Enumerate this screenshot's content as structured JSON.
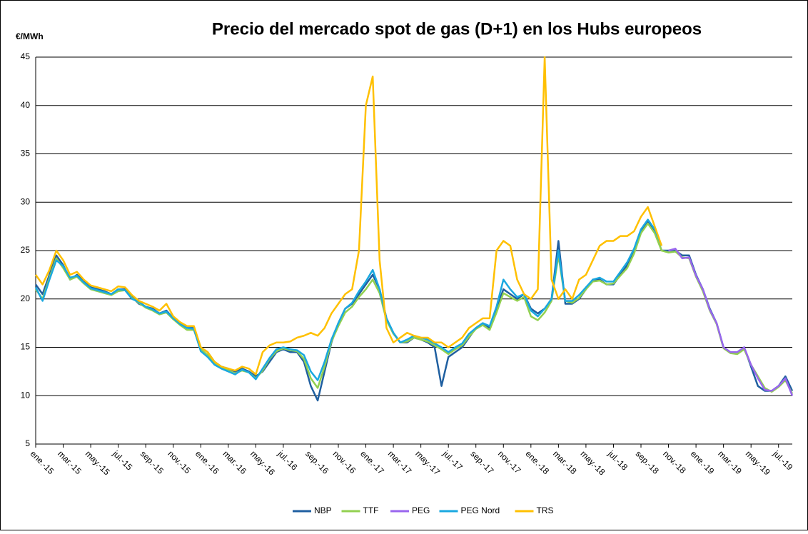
{
  "chart_data": {
    "type": "line",
    "title": "Precio del mercado spot de gas (D+1) en los Hubs europeos",
    "y_label": "€/MWh",
    "categories": [
      "ene.-15",
      null,
      null,
      null,
      "mar.-15",
      null,
      null,
      null,
      "may.-15",
      null,
      null,
      null,
      "jul.-15",
      null,
      null,
      null,
      "sep.-15",
      null,
      null,
      null,
      "nov.-15",
      null,
      null,
      null,
      "ene.-16",
      null,
      null,
      null,
      "mar.-16",
      null,
      null,
      null,
      "may.-16",
      null,
      null,
      null,
      "jul.-16",
      null,
      null,
      null,
      "sep.-16",
      null,
      null,
      null,
      "nov.-16",
      null,
      null,
      null,
      "ene.-17",
      null,
      null,
      null,
      "mar.-17",
      null,
      null,
      null,
      "may.-17",
      null,
      null,
      null,
      "jul.-17",
      null,
      null,
      null,
      "sep.-17",
      null,
      null,
      null,
      "nov.-17",
      null,
      null,
      null,
      "ene.-18",
      null,
      null,
      null,
      "mar.-18",
      null,
      null,
      null,
      "may.-18",
      null,
      null,
      null,
      "jul.-18",
      null,
      null,
      null,
      "sep.-18",
      null,
      null,
      null,
      "nov.-18",
      null,
      null,
      null,
      "ene.-19",
      null,
      null,
      null,
      "mar.-19",
      null,
      null,
      null,
      "may.-19",
      null,
      null,
      null,
      "jul.-19",
      null,
      null
    ],
    "series": [
      {
        "name": "NBP",
        "color": "#1f5fa0",
        "values": [
          21.5,
          20.5,
          22.5,
          24.5,
          23.5,
          22,
          22.5,
          21.8,
          21.2,
          21,
          20.8,
          20.5,
          21,
          21,
          20.2,
          19.5,
          19.2,
          19,
          18.5,
          18.8,
          18,
          17.5,
          17,
          17,
          15,
          14.5,
          13.5,
          13,
          12.8,
          12.5,
          12.8,
          12.5,
          12,
          12.5,
          13.5,
          14.5,
          14.8,
          14.5,
          14.5,
          13.5,
          11,
          9.5,
          12.5,
          15.5,
          17.5,
          19,
          19.5,
          20.5,
          21.5,
          22.5,
          21,
          18,
          16.5,
          15.5,
          15.5,
          16,
          15.8,
          15.5,
          15,
          11,
          14,
          14.5,
          15,
          16,
          17,
          17.5,
          17,
          19,
          21,
          20.5,
          20,
          20.5,
          19,
          18.5,
          19,
          20,
          26,
          19.5,
          19.5,
          20,
          21,
          22,
          22,
          21.5,
          21.5,
          22.5,
          23.5,
          25,
          27,
          28,
          27,
          25,
          25,
          25,
          24.5,
          24.5,
          22.5,
          21,
          19,
          17.5,
          15,
          14.5,
          14.5,
          15,
          13,
          11,
          10.5,
          10.5,
          11,
          12,
          10.5
        ]
      },
      {
        "name": "TTF",
        "color": "#92d050",
        "values": [
          21,
          20,
          22.2,
          24.2,
          23.2,
          22,
          22.3,
          21.6,
          21,
          20.8,
          20.6,
          20.4,
          20.8,
          20.9,
          20.1,
          19.6,
          19.1,
          18.8,
          18.4,
          18.6,
          17.9,
          17.3,
          16.8,
          16.8,
          14.8,
          14.2,
          13.3,
          12.9,
          12.6,
          12.3,
          12.6,
          12.4,
          11.8,
          12.6,
          13.8,
          14.6,
          14.9,
          14.7,
          14.6,
          13.8,
          11.8,
          10.8,
          13,
          15.6,
          17.2,
          18.6,
          19.2,
          20.2,
          21,
          22,
          20.6,
          17.8,
          16.4,
          15.5,
          15.6,
          16,
          15.8,
          15.6,
          15.2,
          14.8,
          14.3,
          14.8,
          15.2,
          16.1,
          16.9,
          17.3,
          16.8,
          18.6,
          20.6,
          20.2,
          19.8,
          20.2,
          18.2,
          17.8,
          18.6,
          19.8,
          24.5,
          19.8,
          19.6,
          20.1,
          21,
          21.8,
          21.9,
          21.5,
          21.6,
          22.4,
          23.2,
          24.7,
          26.8,
          27.8,
          26.8,
          25,
          24.8,
          24.9,
          24.3,
          24.2,
          22.3,
          20.8,
          18.8,
          17.4,
          14.9,
          14.4,
          14.3,
          14.8,
          13.2,
          12,
          10.8,
          10.4,
          10.9,
          11.6,
          10.2
        ]
      },
      {
        "name": "PEG",
        "color": "#9966ee",
        "values": [
          null,
          null,
          null,
          null,
          null,
          null,
          null,
          null,
          null,
          null,
          null,
          null,
          null,
          null,
          null,
          null,
          null,
          null,
          null,
          null,
          null,
          null,
          null,
          null,
          null,
          null,
          null,
          null,
          null,
          null,
          null,
          null,
          null,
          null,
          null,
          null,
          null,
          null,
          null,
          null,
          null,
          null,
          null,
          null,
          null,
          null,
          null,
          null,
          null,
          null,
          null,
          null,
          null,
          null,
          null,
          null,
          null,
          null,
          null,
          null,
          null,
          null,
          null,
          null,
          null,
          null,
          null,
          null,
          null,
          null,
          null,
          null,
          null,
          null,
          null,
          null,
          null,
          null,
          null,
          null,
          null,
          null,
          null,
          null,
          null,
          null,
          null,
          null,
          null,
          null,
          null,
          null,
          25,
          25.2,
          24.2,
          24.3,
          22.4,
          21,
          18.9,
          17.5,
          15,
          14.5,
          14.5,
          15,
          13.2,
          11.8,
          10.6,
          10.5,
          11,
          11.8,
          10
        ]
      },
      {
        "name": "PEG Nord",
        "color": "#1aa8e0",
        "values": [
          21.2,
          19.8,
          22,
          24,
          23.4,
          22.2,
          22.4,
          21.7,
          21.1,
          20.9,
          20.7,
          20.5,
          21,
          20.9,
          20,
          19.7,
          19.2,
          18.9,
          18.5,
          18.7,
          18,
          17.4,
          17,
          16.9,
          14.6,
          14,
          13.2,
          12.8,
          12.5,
          12.2,
          12.7,
          12.4,
          11.7,
          12.8,
          13.9,
          14.8,
          15,
          14.8,
          14.7,
          14.2,
          12.5,
          11.6,
          13.5,
          15.8,
          17.5,
          19,
          19.6,
          20.8,
          21.8,
          23,
          21,
          18,
          16.5,
          15.5,
          15.8,
          16.2,
          16,
          15.8,
          15.4,
          15,
          14.5,
          15,
          15.4,
          16.4,
          17,
          17.5,
          17.2,
          19.2,
          22,
          21,
          20.2,
          20.5,
          18.8,
          18.2,
          19,
          20,
          25,
          19.8,
          19.8,
          20.4,
          21.2,
          22,
          22.2,
          21.8,
          21.8,
          22.8,
          23.8,
          25.2,
          27.2,
          28.2,
          27.2,
          25.5,
          null,
          null,
          null,
          null,
          null,
          null,
          null,
          null,
          null,
          null,
          null,
          null,
          null,
          null,
          null,
          null,
          null,
          null,
          null
        ]
      },
      {
        "name": "TRS",
        "color": "#ffc000",
        "values": [
          22.5,
          21.5,
          23,
          25,
          24,
          22.5,
          22.8,
          22,
          21.4,
          21.2,
          21,
          20.8,
          21.3,
          21.2,
          20.4,
          19.8,
          19.5,
          19.2,
          18.8,
          19.5,
          18.2,
          17.6,
          17.2,
          17.2,
          15,
          14.5,
          13.5,
          13,
          12.8,
          12.6,
          13,
          12.8,
          12.2,
          14.5,
          15.2,
          15.5,
          15.5,
          15.6,
          16,
          16.2,
          16.5,
          16.2,
          17,
          18.5,
          19.5,
          20.5,
          21,
          25,
          40,
          43,
          24,
          17,
          15.5,
          16,
          16.5,
          16.2,
          16,
          16,
          15.5,
          15.5,
          15,
          15.5,
          16,
          17,
          17.5,
          18,
          18,
          25,
          26,
          25.5,
          22,
          20.5,
          20,
          21,
          45,
          22,
          20,
          21,
          20,
          22,
          22.5,
          24,
          25.5,
          26,
          26,
          26.5,
          26.5,
          27,
          28.5,
          29.5,
          27.5,
          25.5,
          null,
          null,
          null,
          null,
          null,
          null,
          null,
          null,
          null,
          null,
          null,
          null,
          null,
          null,
          null,
          null,
          null,
          null,
          null
        ]
      }
    ],
    "ylim": [
      5,
      45
    ],
    "yticks": [
      5,
      10,
      15,
      20,
      25,
      30,
      35,
      40,
      45
    ],
    "grid": true,
    "legend": "bottom"
  }
}
